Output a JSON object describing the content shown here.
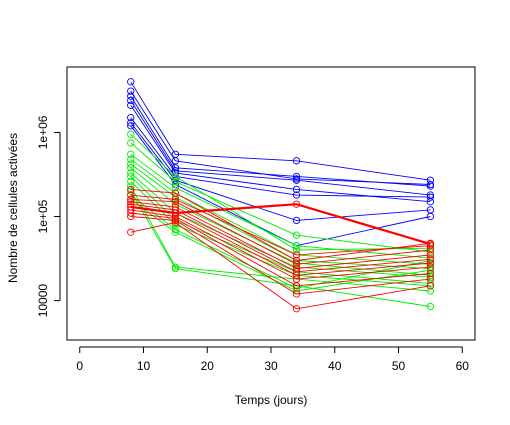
{
  "chart_data": {
    "type": "line",
    "xlabel": "Temps (jours)",
    "ylabel": "Nombre de cellules activées",
    "x_ticks": [
      0,
      10,
      20,
      30,
      40,
      50,
      60
    ],
    "y_ticks": [
      {
        "value": 10000,
        "label": "10000"
      },
      {
        "value": 100000,
        "label": "1e+05"
      },
      {
        "value": 1000000,
        "label": "1e+06"
      }
    ],
    "xlim": [
      -2,
      62
    ],
    "ylim": [
      3400,
      6000000
    ],
    "y_scale": "log",
    "grid": false,
    "x": [
      8,
      15,
      34,
      55
    ],
    "series": [
      {
        "color": "#0000ff",
        "values": [
          4000000,
          550000,
          460000,
          270000
        ]
      },
      {
        "color": "#0000ff",
        "values": [
          3100000,
          460000,
          280000,
          240000
        ]
      },
      {
        "color": "#0000ff",
        "values": [
          2700000,
          380000,
          300000,
          230000
        ]
      },
      {
        "color": "#0000ff",
        "values": [
          2400000,
          350000,
          270000,
          180000
        ]
      },
      {
        "color": "#0000ff",
        "values": [
          2100000,
          330000,
          210000,
          150000
        ]
      },
      {
        "color": "#0000ff",
        "values": [
          1500000,
          300000,
          180000,
          170000
        ]
      },
      {
        "color": "#0000ff",
        "values": [
          1300000,
          270000,
          90000,
          120000
        ]
      },
      {
        "color": "#0000ff",
        "values": [
          1200000,
          240000,
          45000,
          100000
        ]
      },
      {
        "color": "#00ee00",
        "values": [
          950000,
          300000,
          40000,
          42000
        ]
      },
      {
        "color": "#00ee00",
        "values": [
          750000,
          260000,
          60000,
          38000
        ]
      },
      {
        "color": "#00ee00",
        "values": [
          550000,
          220000,
          45000,
          32000
        ]
      },
      {
        "color": "#00ee00",
        "values": [
          480000,
          190000,
          35000,
          27000
        ]
      },
      {
        "color": "#00ee00",
        "values": [
          420000,
          170000,
          30000,
          24000
        ]
      },
      {
        "color": "#00ee00",
        "values": [
          380000,
          140000,
          28000,
          20000
        ]
      },
      {
        "color": "#00ee00",
        "values": [
          330000,
          110000,
          25000,
          19000
        ]
      },
      {
        "color": "#00ee00",
        "values": [
          300000,
          90000,
          22000,
          16000
        ]
      },
      {
        "color": "#00ee00",
        "values": [
          260000,
          80000,
          20000,
          15000
        ]
      },
      {
        "color": "#00ee00",
        "values": [
          230000,
          25000,
          18000,
          13000
        ]
      },
      {
        "color": "#00ee00",
        "values": [
          200000,
          24000,
          15000,
          8500
        ]
      },
      {
        "color": "#00ee00",
        "values": [
          180000,
          70000,
          14000,
          30000
        ]
      },
      {
        "color": "#00ee00",
        "values": [
          160000,
          65000,
          13000,
          23000
        ]
      },
      {
        "color": "#ff0000",
        "values": [
          210000,
          190000,
          30000,
          48000
        ]
      },
      {
        "color": "#ff0000",
        "values": [
          180000,
          160000,
          35000,
          45000
        ]
      },
      {
        "color": "#ff0000",
        "values": [
          160000,
          150000,
          27000,
          40000
        ]
      },
      {
        "color": "#ff0000",
        "values": [
          150000,
          130000,
          24000,
          35000
        ]
      },
      {
        "color": "#ff0000",
        "values": [
          140000,
          120000,
          22000,
          31000
        ]
      },
      {
        "color": "#ff0000",
        "values": [
          130000,
          110000,
          20000,
          28000
        ]
      },
      {
        "color": "#ff0000",
        "values": [
          120000,
          100000,
          18000,
          25000
        ]
      },
      {
        "color": "#ff0000",
        "values": [
          110000,
          95000,
          15000,
          21000
        ]
      },
      {
        "color": "#ff0000",
        "values": [
          100000,
          90000,
          12000,
          18000
        ]
      },
      {
        "color": "#ff0000",
        "values": [
          65000,
          85000,
          8000,
          15000
        ]
      },
      {
        "color": "#ff0000",
        "values": [
          130000,
          110000,
          140000,
          47000
        ],
        "bold": true
      }
    ]
  }
}
